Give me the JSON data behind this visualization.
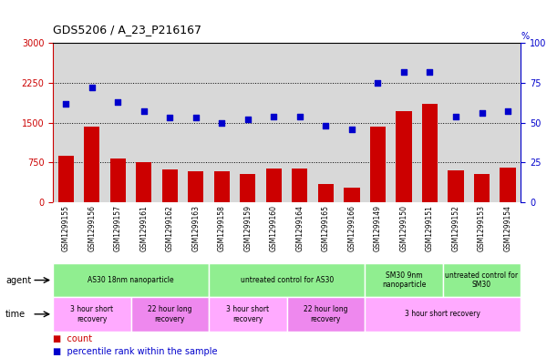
{
  "title": "GDS5206 / A_23_P216167",
  "samples": [
    "GSM1299155",
    "GSM1299156",
    "GSM1299157",
    "GSM1299161",
    "GSM1299162",
    "GSM1299163",
    "GSM1299158",
    "GSM1299159",
    "GSM1299160",
    "GSM1299164",
    "GSM1299165",
    "GSM1299166",
    "GSM1299149",
    "GSM1299150",
    "GSM1299151",
    "GSM1299152",
    "GSM1299153",
    "GSM1299154"
  ],
  "counts": [
    870,
    1420,
    830,
    750,
    610,
    580,
    590,
    530,
    640,
    640,
    340,
    280,
    1430,
    1720,
    1860,
    600,
    540,
    660
  ],
  "percentiles": [
    62,
    72,
    63,
    57,
    53,
    53,
    50,
    52,
    54,
    54,
    48,
    46,
    75,
    82,
    82,
    54,
    56,
    57
  ],
  "ylim_left": [
    0,
    3000
  ],
  "ylim_right": [
    0,
    100
  ],
  "yticks_left": [
    0,
    750,
    1500,
    2250,
    3000
  ],
  "yticks_right": [
    0,
    25,
    50,
    75,
    100
  ],
  "bar_color": "#cc0000",
  "dot_color": "#0000cc",
  "plot_bg_color": "#d8d8d8",
  "agent_groups": [
    {
      "label": "AS30 18nm nanoparticle",
      "start": 0,
      "end": 6,
      "color": "#90ee90"
    },
    {
      "label": "untreated control for AS30",
      "start": 6,
      "end": 12,
      "color": "#90ee90"
    },
    {
      "label": "SM30 9nm\nnanoparticle",
      "start": 12,
      "end": 15,
      "color": "#90ee90"
    },
    {
      "label": "untreated control for\nSM30",
      "start": 15,
      "end": 18,
      "color": "#90ee90"
    }
  ],
  "time_groups": [
    {
      "label": "3 hour short\nrecovery",
      "start": 0,
      "end": 3,
      "color": "#ffaaff"
    },
    {
      "label": "22 hour long\nrecovery",
      "start": 3,
      "end": 6,
      "color": "#ee88ee"
    },
    {
      "label": "3 hour short\nrecovery",
      "start": 6,
      "end": 9,
      "color": "#ffaaff"
    },
    {
      "label": "22 hour long\nrecovery",
      "start": 9,
      "end": 12,
      "color": "#ee88ee"
    },
    {
      "label": "3 hour short recovery",
      "start": 12,
      "end": 18,
      "color": "#ffaaff"
    }
  ],
  "legend_count_color": "#cc0000",
  "legend_pct_color": "#0000cc",
  "left_tick_color": "#cc0000",
  "right_tick_color": "#0000cc"
}
